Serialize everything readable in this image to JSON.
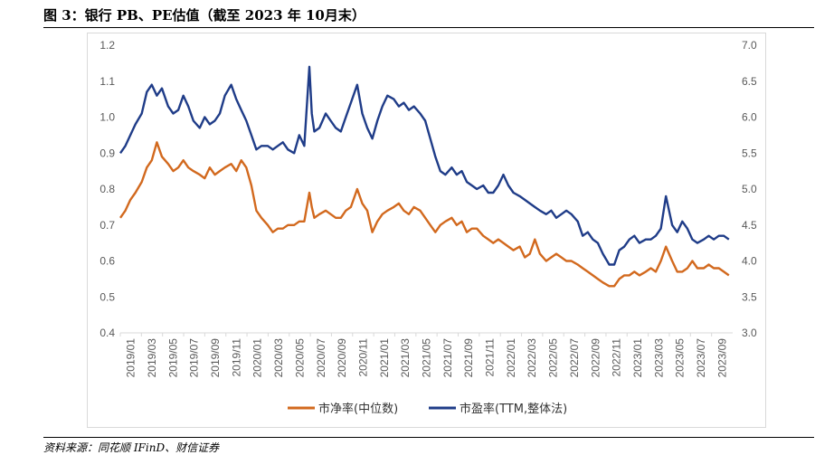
{
  "figure": {
    "title": "图 3：银行 PB、PE估值（截至 2023 年 10月末）",
    "source": "资料来源：同花顺 IFinD、财信证券"
  },
  "colors": {
    "pb": "#D2691E",
    "pe": "#1F3C88",
    "axis": "#d9d9d9",
    "text": "#595959"
  },
  "chart_data": {
    "type": "line",
    "title": "",
    "xlabel": "",
    "ylabel": "",
    "grid": false,
    "legend_position": "bottom",
    "x_tick_labels": [
      "2019/01",
      "2019/03",
      "2019/05",
      "2019/07",
      "2019/09",
      "2019/11",
      "2020/01",
      "2020/03",
      "2020/05",
      "2020/07",
      "2020/09",
      "2020/11",
      "2021/01",
      "2021/03",
      "2021/05",
      "2021/07",
      "2021/09",
      "2021/11",
      "2022/01",
      "2022/03",
      "2022/05",
      "2022/07",
      "2022/09",
      "2022/11",
      "2023/01",
      "2023/03",
      "2023/05",
      "2023/07",
      "2023/09"
    ],
    "y_left": {
      "ylim": [
        0.4,
        1.2
      ],
      "ticks": [
        "0.4",
        "0.5",
        "0.6",
        "0.7",
        "0.8",
        "0.9",
        "1.0",
        "1.1",
        "1.2"
      ]
    },
    "y_right": {
      "ylim": [
        3.0,
        7.0
      ],
      "ticks": [
        "3.0",
        "3.5",
        "4.0",
        "4.5",
        "5.0",
        "5.5",
        "6.0",
        "6.5",
        "7.0"
      ]
    },
    "x": [
      2019.0,
      2019.04,
      2019.08,
      2019.12,
      2019.17,
      2019.21,
      2019.25,
      2019.29,
      2019.33,
      2019.38,
      2019.42,
      2019.46,
      2019.5,
      2019.54,
      2019.58,
      2019.63,
      2019.67,
      2019.71,
      2019.75,
      2019.79,
      2019.83,
      2019.88,
      2019.92,
      2019.96,
      2020.0,
      2020.04,
      2020.08,
      2020.12,
      2020.17,
      2020.21,
      2020.25,
      2020.29,
      2020.33,
      2020.38,
      2020.42,
      2020.46,
      2020.5,
      2020.52,
      2020.54,
      2020.58,
      2020.63,
      2020.67,
      2020.71,
      2020.75,
      2020.79,
      2020.83,
      2020.88,
      2020.92,
      2020.96,
      2021.0,
      2021.04,
      2021.08,
      2021.12,
      2021.17,
      2021.21,
      2021.25,
      2021.29,
      2021.33,
      2021.38,
      2021.42,
      2021.46,
      2021.5,
      2021.54,
      2021.58,
      2021.63,
      2021.67,
      2021.71,
      2021.75,
      2021.79,
      2021.83,
      2021.88,
      2021.92,
      2021.96,
      2022.0,
      2022.04,
      2022.08,
      2022.12,
      2022.17,
      2022.21,
      2022.25,
      2022.29,
      2022.33,
      2022.38,
      2022.42,
      2022.46,
      2022.5,
      2022.54,
      2022.58,
      2022.63,
      2022.67,
      2022.71,
      2022.75,
      2022.79,
      2022.83,
      2022.88,
      2022.92,
      2022.96,
      2023.0,
      2023.04,
      2023.08,
      2023.12,
      2023.17,
      2023.21,
      2023.25,
      2023.29,
      2023.33,
      2023.38,
      2023.42,
      2023.46,
      2023.5,
      2023.54,
      2023.58,
      2023.63,
      2023.67,
      2023.71,
      2023.75,
      2023.79,
      2023.83
    ],
    "series": [
      {
        "name": "市净率(中位数)",
        "axis": "left",
        "values": [
          0.72,
          0.74,
          0.77,
          0.79,
          0.82,
          0.86,
          0.88,
          0.93,
          0.89,
          0.87,
          0.85,
          0.86,
          0.88,
          0.86,
          0.85,
          0.84,
          0.83,
          0.86,
          0.84,
          0.85,
          0.86,
          0.87,
          0.85,
          0.88,
          0.86,
          0.81,
          0.74,
          0.72,
          0.7,
          0.68,
          0.69,
          0.69,
          0.7,
          0.7,
          0.71,
          0.71,
          0.79,
          0.75,
          0.72,
          0.73,
          0.74,
          0.73,
          0.72,
          0.72,
          0.74,
          0.75,
          0.8,
          0.76,
          0.74,
          0.68,
          0.71,
          0.73,
          0.74,
          0.75,
          0.76,
          0.74,
          0.73,
          0.75,
          0.74,
          0.72,
          0.7,
          0.68,
          0.7,
          0.71,
          0.72,
          0.7,
          0.71,
          0.68,
          0.69,
          0.69,
          0.67,
          0.66,
          0.65,
          0.66,
          0.65,
          0.64,
          0.63,
          0.64,
          0.61,
          0.62,
          0.66,
          0.62,
          0.6,
          0.61,
          0.62,
          0.61,
          0.6,
          0.6,
          0.59,
          0.58,
          0.57,
          0.56,
          0.55,
          0.54,
          0.53,
          0.53,
          0.55,
          0.56,
          0.56,
          0.57,
          0.56,
          0.57,
          0.58,
          0.57,
          0.6,
          0.64,
          0.6,
          0.57,
          0.57,
          0.58,
          0.6,
          0.58,
          0.58,
          0.59,
          0.58,
          0.58,
          0.57,
          0.56
        ]
      },
      {
        "name": "市盈率(TTM,整体法)",
        "axis": "right",
        "values": [
          5.5,
          5.6,
          5.75,
          5.9,
          6.05,
          6.35,
          6.45,
          6.3,
          6.4,
          6.15,
          6.05,
          6.1,
          6.3,
          6.15,
          5.95,
          5.85,
          6.0,
          5.9,
          5.95,
          6.05,
          6.3,
          6.45,
          6.25,
          6.1,
          5.95,
          5.75,
          5.55,
          5.6,
          5.6,
          5.55,
          5.6,
          5.65,
          5.55,
          5.5,
          5.75,
          5.6,
          6.7,
          6.05,
          5.8,
          5.85,
          6.05,
          5.95,
          5.85,
          5.8,
          6.0,
          6.2,
          6.45,
          6.05,
          5.85,
          5.7,
          5.95,
          6.15,
          6.3,
          6.25,
          6.15,
          6.2,
          6.1,
          6.15,
          6.05,
          5.95,
          5.7,
          5.45,
          5.25,
          5.2,
          5.3,
          5.2,
          5.25,
          5.1,
          5.05,
          5.0,
          5.05,
          4.95,
          4.95,
          5.05,
          5.2,
          5.05,
          4.95,
          4.9,
          4.85,
          4.8,
          4.75,
          4.7,
          4.65,
          4.7,
          4.6,
          4.65,
          4.7,
          4.65,
          4.55,
          4.35,
          4.4,
          4.3,
          4.25,
          4.1,
          3.95,
          3.95,
          4.15,
          4.2,
          4.3,
          4.35,
          4.25,
          4.3,
          4.3,
          4.35,
          4.45,
          4.9,
          4.5,
          4.4,
          4.55,
          4.45,
          4.3,
          4.25,
          4.3,
          4.35,
          4.3,
          4.35,
          4.35,
          4.3
        ]
      }
    ]
  }
}
